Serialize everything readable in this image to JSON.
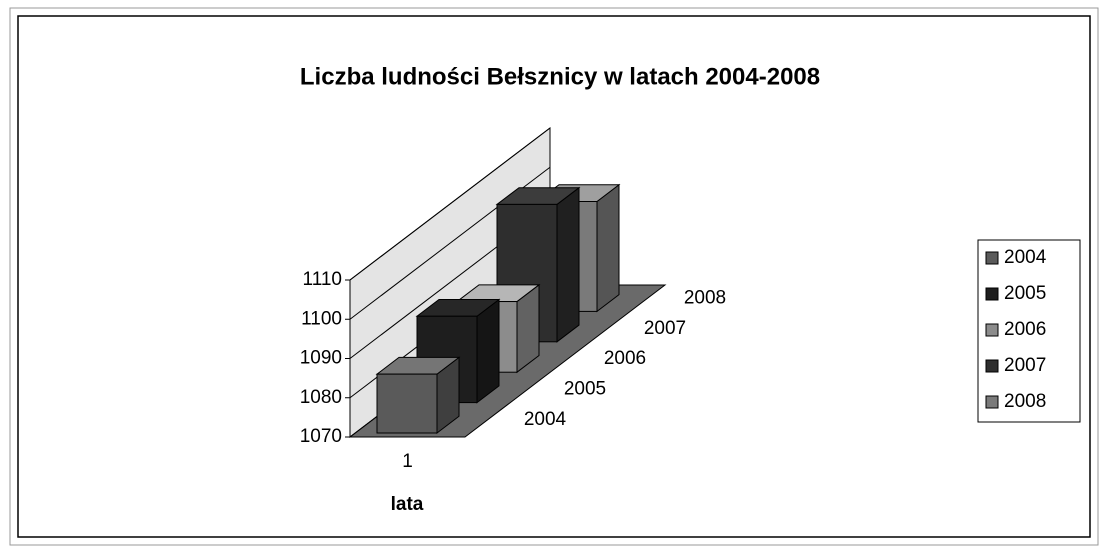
{
  "chart_data": {
    "type": "bar3d",
    "title": "Liczba ludności Bełsznicy w latach 2004-2008",
    "x_label": "lata",
    "categories": [
      "1"
    ],
    "series": [
      {
        "name": "2004",
        "color": "#5a5a5a",
        "values": [
          1085
        ]
      },
      {
        "name": "2005",
        "color": "#1e1e1e",
        "values": [
          1092
        ]
      },
      {
        "name": "2006",
        "color": "#8c8c8c",
        "values": [
          1088
        ]
      },
      {
        "name": "2007",
        "color": "#2e2e2e",
        "values": [
          1105
        ]
      },
      {
        "name": "2008",
        "color": "#7a7a7a",
        "values": [
          1098
        ]
      }
    ],
    "ylim": [
      1070,
      1110
    ],
    "yticks": [
      1070,
      1080,
      1090,
      1100,
      1110
    ],
    "grid": true,
    "legend": "right"
  }
}
